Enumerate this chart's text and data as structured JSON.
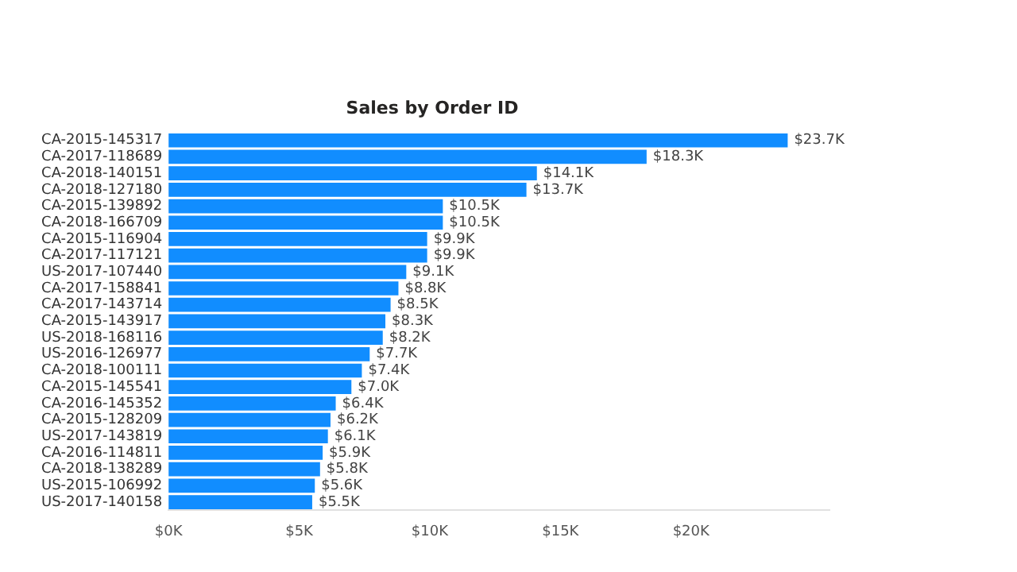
{
  "chart_data": {
    "type": "bar",
    "orientation": "horizontal",
    "title": "Sales by Order ID",
    "categories": [
      "CA-2015-145317",
      "CA-2017-118689",
      "CA-2018-140151",
      "CA-2018-127180",
      "CA-2015-139892",
      "CA-2018-166709",
      "CA-2015-116904",
      "CA-2017-117121",
      "US-2017-107440",
      "CA-2017-158841",
      "CA-2017-143714",
      "CA-2015-143917",
      "US-2018-168116",
      "US-2016-126977",
      "CA-2018-100111",
      "CA-2015-145541",
      "CA-2016-145352",
      "CA-2015-128209",
      "US-2017-143819",
      "CA-2016-114811",
      "CA-2018-138289",
      "US-2015-106992",
      "US-2017-140158"
    ],
    "values": [
      23700,
      18300,
      14100,
      13700,
      10500,
      10500,
      9900,
      9900,
      9100,
      8800,
      8500,
      8300,
      8200,
      7700,
      7400,
      7000,
      6400,
      6200,
      6100,
      5900,
      5800,
      5600,
      5500
    ],
    "value_labels": [
      "$23.7K",
      "$18.3K",
      "$14.1K",
      "$13.7K",
      "$10.5K",
      "$10.5K",
      "$9.9K",
      "$9.9K",
      "$9.1K",
      "$8.8K",
      "$8.5K",
      "$8.3K",
      "$8.2K",
      "$7.7K",
      "$7.4K",
      "$7.0K",
      "$6.4K",
      "$6.2K",
      "$6.1K",
      "$5.9K",
      "$5.8K",
      "$5.6K",
      "$5.5K"
    ],
    "color": "#118dff",
    "xlim": [
      0,
      25300
    ],
    "xticks": [
      {
        "value": 0,
        "label": "$0K"
      },
      {
        "value": 5000,
        "label": "$5K"
      },
      {
        "value": 10000,
        "label": "$10K"
      },
      {
        "value": 15000,
        "label": "$15K"
      },
      {
        "value": 20000,
        "label": "$20K"
      }
    ],
    "grid": false,
    "legend": false
  }
}
